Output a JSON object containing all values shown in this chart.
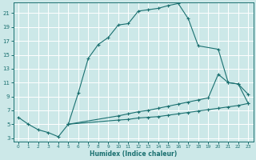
{
  "xlabel": "Humidex (Indice chaleur)",
  "bg_color": "#cce8e8",
  "grid_color": "#ffffff",
  "line_color": "#1a7070",
  "xlim": [
    -0.5,
    23.5
  ],
  "ylim": [
    2.5,
    22.5
  ],
  "xticks": [
    0,
    1,
    2,
    3,
    4,
    5,
    6,
    7,
    8,
    9,
    10,
    11,
    12,
    13,
    14,
    15,
    16,
    17,
    18,
    19,
    20,
    21,
    22,
    23
  ],
  "yticks": [
    3,
    5,
    7,
    9,
    11,
    13,
    15,
    17,
    19,
    21
  ],
  "curve1_x": [
    0,
    1,
    2,
    3,
    4,
    5,
    6,
    7,
    8,
    9,
    10,
    11,
    12,
    13,
    14,
    15,
    16,
    17,
    18,
    20,
    21,
    22,
    23
  ],
  "curve1_y": [
    6,
    5,
    4.2,
    3.8,
    3.2,
    5.0,
    9.5,
    14.5,
    16.5,
    17.5,
    19.3,
    19.5,
    21.3,
    21.5,
    21.7,
    22.1,
    22.4,
    20.2,
    16.3,
    15.8,
    11.0,
    10.8,
    8.0
  ],
  "curve2_x": [
    5,
    10,
    11,
    12,
    13,
    14,
    15,
    16,
    17,
    18,
    19,
    20,
    21,
    22,
    23
  ],
  "curve2_y": [
    5.0,
    6.2,
    6.5,
    6.8,
    7.0,
    7.3,
    7.6,
    7.9,
    8.2,
    8.5,
    8.8,
    12.2,
    11.0,
    10.8,
    9.3
  ],
  "curve3_x": [
    5,
    10,
    11,
    12,
    13,
    14,
    15,
    16,
    17,
    18,
    19,
    20,
    21,
    22,
    23
  ],
  "curve3_y": [
    5.0,
    5.6,
    5.7,
    5.9,
    6.0,
    6.1,
    6.3,
    6.5,
    6.7,
    6.9,
    7.1,
    7.3,
    7.5,
    7.7,
    8.0
  ],
  "xlabel_fontsize": 5.5,
  "tick_fontsize_x": 4.2,
  "tick_fontsize_y": 5.0
}
